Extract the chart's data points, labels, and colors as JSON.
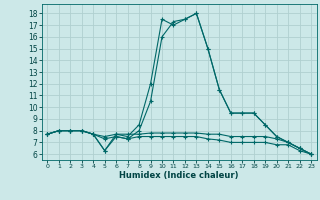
{
  "xlabel": "Humidex (Indice chaleur)",
  "background_color": "#cce8e8",
  "grid_color": "#b0d0d0",
  "line_color": "#006868",
  "xlim": [
    -0.5,
    23.5
  ],
  "ylim": [
    5.5,
    18.8
  ],
  "yticks": [
    6,
    7,
    8,
    9,
    10,
    11,
    12,
    13,
    14,
    15,
    16,
    17,
    18
  ],
  "xticks": [
    0,
    1,
    2,
    3,
    4,
    5,
    6,
    7,
    8,
    9,
    10,
    11,
    12,
    13,
    14,
    15,
    16,
    17,
    18,
    19,
    20,
    21,
    22,
    23
  ],
  "series": [
    {
      "x": [
        0,
        1,
        2,
        3,
        4,
        5,
        6,
        7,
        8,
        9,
        10,
        11,
        12,
        13,
        14,
        15,
        16,
        17,
        18,
        19,
        20,
        21,
        22,
        23
      ],
      "y": [
        7.7,
        8.0,
        8.0,
        8.0,
        7.7,
        6.3,
        7.7,
        7.5,
        8.5,
        12.0,
        17.5,
        17.0,
        17.5,
        18.0,
        15.0,
        11.5,
        9.5,
        9.5,
        9.5,
        8.5,
        7.5,
        7.0,
        6.5,
        6.0
      ]
    },
    {
      "x": [
        0,
        1,
        2,
        3,
        4,
        5,
        6,
        7,
        8,
        9,
        10,
        11,
        12,
        13,
        14,
        15,
        16,
        17,
        18,
        19,
        20,
        21,
        22,
        23
      ],
      "y": [
        7.7,
        8.0,
        8.0,
        8.0,
        7.7,
        6.3,
        7.5,
        7.3,
        8.0,
        10.5,
        16.0,
        17.3,
        17.5,
        18.0,
        15.0,
        11.5,
        9.5,
        9.5,
        9.5,
        8.5,
        7.5,
        7.0,
        6.5,
        6.0
      ]
    },
    {
      "x": [
        0,
        1,
        2,
        3,
        4,
        5,
        6,
        7,
        8,
        9,
        10,
        11,
        12,
        13,
        14,
        15,
        16,
        17,
        18,
        19,
        20,
        21,
        22,
        23
      ],
      "y": [
        7.7,
        8.0,
        8.0,
        8.0,
        7.7,
        7.5,
        7.7,
        7.7,
        7.7,
        7.8,
        7.8,
        7.8,
        7.8,
        7.8,
        7.7,
        7.7,
        7.5,
        7.5,
        7.5,
        7.5,
        7.3,
        7.0,
        6.5,
        6.0
      ]
    },
    {
      "x": [
        0,
        1,
        2,
        3,
        4,
        5,
        6,
        7,
        8,
        9,
        10,
        11,
        12,
        13,
        14,
        15,
        16,
        17,
        18,
        19,
        20,
        21,
        22,
        23
      ],
      "y": [
        7.7,
        8.0,
        8.0,
        8.0,
        7.7,
        7.3,
        7.5,
        7.3,
        7.5,
        7.5,
        7.5,
        7.5,
        7.5,
        7.5,
        7.3,
        7.2,
        7.0,
        7.0,
        7.0,
        7.0,
        6.8,
        6.8,
        6.3,
        6.0
      ]
    }
  ]
}
